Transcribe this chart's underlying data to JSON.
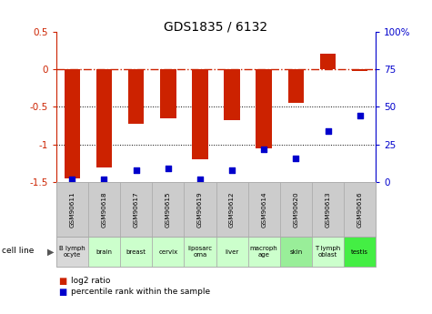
{
  "title": "GDS1835 / 6132",
  "gsm_labels": [
    "GSM90611",
    "GSM90618",
    "GSM90617",
    "GSM90615",
    "GSM90619",
    "GSM90612",
    "GSM90614",
    "GSM90620",
    "GSM90613",
    "GSM90616"
  ],
  "cell_lines": [
    "B lymph\nocyte",
    "brain",
    "breast",
    "cervix",
    "liposarc\noma",
    "liver",
    "macroph\nage",
    "skin",
    "T lymph\noblast",
    "testis"
  ],
  "cell_line_colors": [
    "#d8d8d8",
    "#ccffcc",
    "#ccffcc",
    "#ccffcc",
    "#ccffcc",
    "#ccffcc",
    "#ccffcc",
    "#99ee99",
    "#ccffcc",
    "#44ee44"
  ],
  "log2_ratio": [
    -1.45,
    -1.3,
    -0.73,
    -0.65,
    -1.2,
    -0.68,
    -1.05,
    -0.45,
    0.2,
    -0.02
  ],
  "percentile_rank": [
    2,
    2,
    8,
    9,
    2,
    8,
    22,
    16,
    34,
    44
  ],
  "ylim_left": [
    -1.5,
    0.5
  ],
  "ylim_right": [
    0,
    100
  ],
  "bar_color": "#cc2200",
  "dot_color": "#0000cc",
  "left_yticks": [
    -1.5,
    -1.0,
    -0.5,
    0.0,
    0.5
  ],
  "left_yticklabels": [
    "-1.5",
    "-1",
    "-0.5",
    "0",
    "0.5"
  ],
  "right_yticks": [
    0,
    25,
    50,
    75,
    100
  ],
  "right_yticklabels": [
    "0",
    "25",
    "50",
    "75",
    "100%"
  ]
}
